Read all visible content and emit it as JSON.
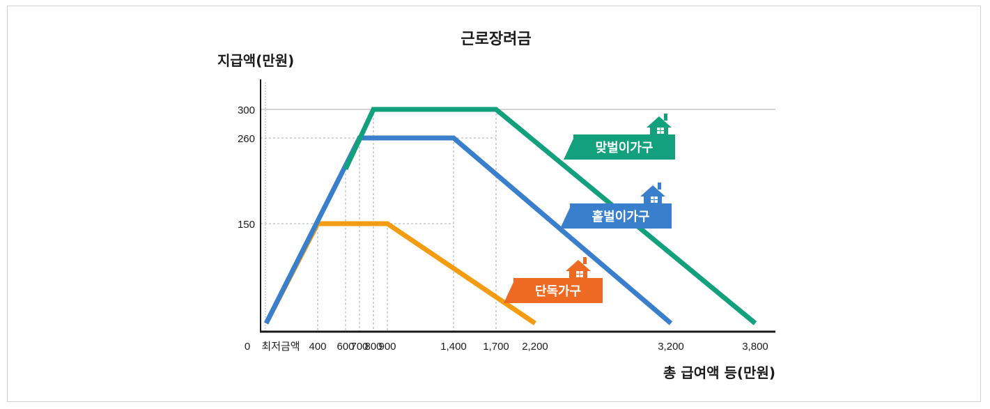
{
  "chart_data": {
    "type": "line",
    "title": "근로장려금",
    "ylabel": "지급액(만원)",
    "xlabel": "총 급여액 등(만원)",
    "origin_label": "0",
    "xlim": [
      0,
      3800
    ],
    "ylim": [
      0,
      340
    ],
    "grid": "dashed reference lines",
    "x_tick_labels": [
      {
        "value": 0,
        "label": "최저금액"
      },
      {
        "value": 400,
        "label": "400"
      },
      {
        "value": 600,
        "label": "600"
      },
      {
        "value": 700,
        "label": "700"
      },
      {
        "value": 800,
        "label": "800"
      },
      {
        "value": 900,
        "label": "900"
      },
      {
        "value": 1400,
        "label": "1,400"
      },
      {
        "value": 1700,
        "label": "1,700"
      },
      {
        "value": 2200,
        "label": "2,200"
      },
      {
        "value": 3200,
        "label": "3,200"
      },
      {
        "value": 3800,
        "label": "3,800"
      }
    ],
    "y_tick_labels": [
      {
        "value": 150,
        "label": "150"
      },
      {
        "value": 260,
        "label": "260"
      },
      {
        "value": 300,
        "label": "300"
      }
    ],
    "series": [
      {
        "name": "단독가구",
        "color": "#F39C12",
        "label_color": "#EE6A22",
        "points": [
          [
            0,
            0
          ],
          [
            400,
            150
          ],
          [
            900,
            150
          ],
          [
            2200,
            0
          ]
        ]
      },
      {
        "name": "홑벌이가구",
        "color": "#3A7FCC",
        "label_color": "#3A7FCC",
        "points": [
          [
            0,
            0
          ],
          [
            700,
            260
          ],
          [
            1400,
            260
          ],
          [
            3200,
            0
          ]
        ]
      },
      {
        "name": "맞벌이가구",
        "color": "#13A07C",
        "label_color": "#13A07C",
        "points": [
          [
            600,
            220
          ],
          [
            800,
            300
          ],
          [
            1700,
            300
          ],
          [
            3800,
            0
          ]
        ]
      }
    ]
  }
}
